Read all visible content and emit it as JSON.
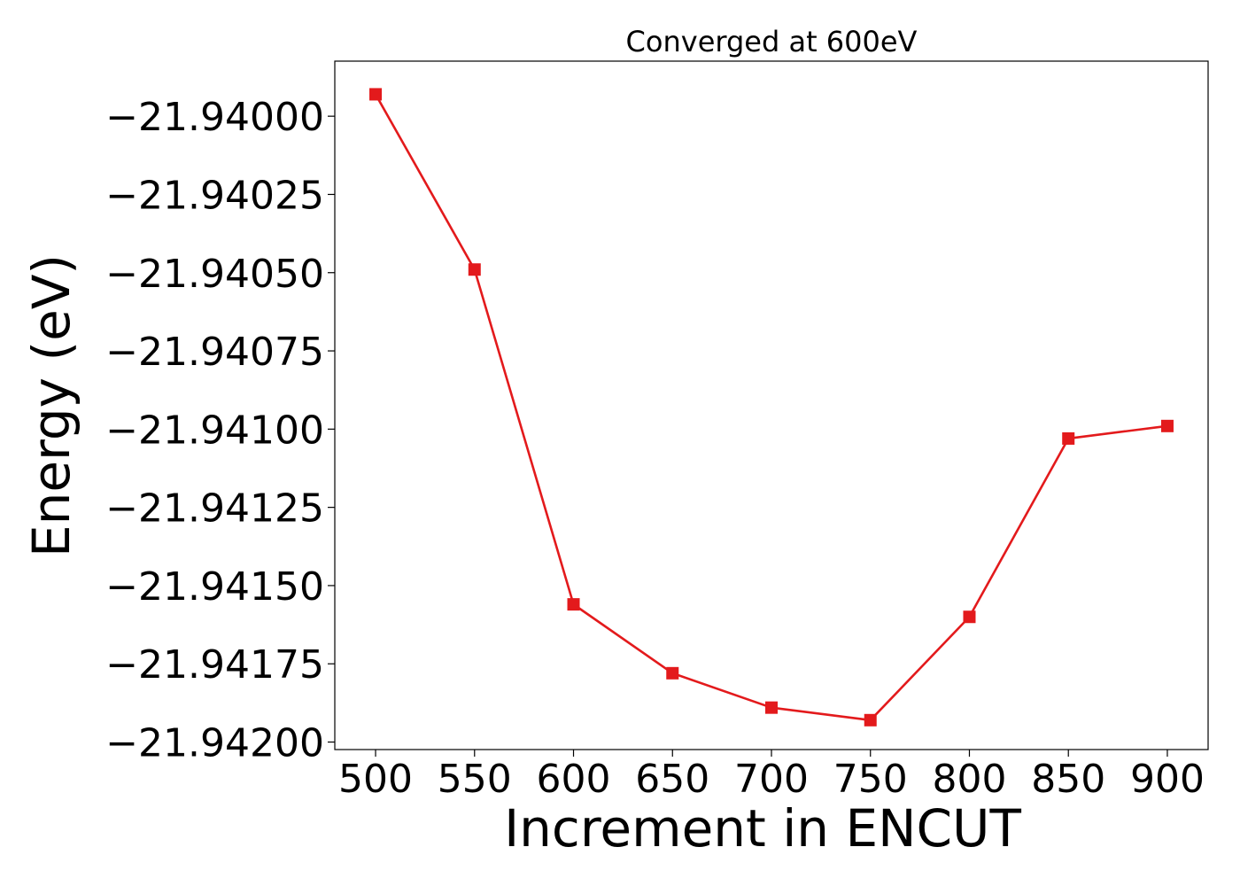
{
  "chart_data": {
    "type": "line",
    "title": "Converged at 600eV",
    "xlabel": "Increment in ENCUT",
    "ylabel": "Energy (eV)",
    "x": [
      500,
      550,
      600,
      650,
      700,
      750,
      800,
      850,
      900
    ],
    "series": [
      {
        "values": [
          -21.93993,
          -21.94049,
          -21.94156,
          -21.94178,
          -21.94189,
          -21.94193,
          -21.9416,
          -21.94103,
          -21.94099
        ],
        "color": "#e31a1c",
        "marker": "square"
      }
    ],
    "x_ticks": [
      500,
      550,
      600,
      650,
      700,
      750,
      800,
      850,
      900
    ],
    "y_ticks": [
      -21.94,
      -21.94025,
      -21.9405,
      -21.94075,
      -21.941,
      -21.94125,
      -21.9415,
      -21.94175,
      -21.942
    ],
    "y_tick_labels": [
      "−21.94000",
      "−21.94025",
      "−21.94050",
      "−21.94075",
      "−21.94100",
      "−21.94125",
      "−21.94150",
      "−21.94175",
      "−21.94200"
    ],
    "xlim": [
      479.4,
      920.6
    ],
    "ylim": [
      -21.942024,
      -21.939824
    ],
    "grid": false,
    "legend": false
  }
}
